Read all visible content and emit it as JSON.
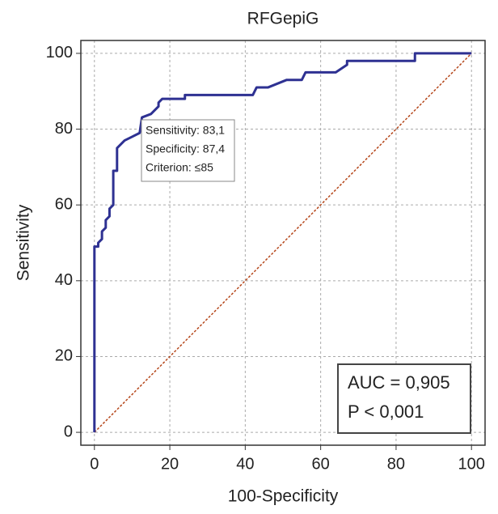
{
  "chart_data": {
    "type": "line",
    "title": "RFGepiG",
    "x_label": "100-Specificity",
    "y_label": "Sensitivity",
    "xlim": [
      -3.6,
      103.6
    ],
    "ylim": [
      -3.4,
      103.4
    ],
    "xticks": [
      0,
      20,
      40,
      60,
      80,
      100
    ],
    "yticks": [
      0,
      20,
      40,
      60,
      80,
      100
    ],
    "grid": true,
    "series": [
      {
        "color": "#2e3192",
        "x": [
          0,
          0,
          1,
          1,
          2,
          2,
          3,
          3,
          4,
          4,
          5,
          5,
          6,
          6,
          8,
          10,
          12,
          12.6,
          15,
          17,
          17,
          18,
          24,
          24,
          42,
          43,
          46,
          51,
          55,
          56,
          64,
          67,
          67,
          85,
          85,
          100
        ],
        "values": [
          0,
          49,
          49,
          50,
          51,
          53,
          54,
          56,
          57,
          59,
          60,
          69,
          69,
          75,
          77,
          78,
          79,
          83.1,
          84,
          86,
          87,
          88,
          88,
          89,
          89,
          91,
          91,
          93,
          93,
          95,
          95,
          97,
          98,
          98,
          100,
          100
        ]
      }
    ],
    "reference_line": {
      "color": "#b5461a",
      "x": [
        0,
        100
      ],
      "values": [
        0,
        100
      ]
    },
    "annotations": [
      "Sensitivity: 83,1",
      "Specificity: 87,4",
      "Criterion: ≤85"
    ],
    "stats": [
      "AUC = 0,905",
      "P < 0,001"
    ]
  }
}
